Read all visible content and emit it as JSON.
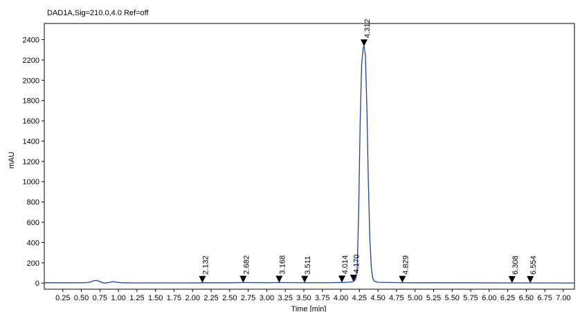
{
  "chart_data": {
    "type": "line",
    "title": "DAD1A,Sig=210.0,4.0  Ref=off",
    "xlabel": "Time [min]",
    "ylabel": "mAU",
    "xlim": [
      0,
      7.15
    ],
    "ylim": [
      -60,
      2560
    ],
    "x_ticks": [
      0.25,
      0.5,
      0.75,
      1.0,
      1.25,
      1.5,
      1.75,
      2.0,
      2.25,
      2.5,
      2.75,
      3.0,
      3.25,
      3.5,
      3.75,
      4.0,
      4.25,
      4.5,
      4.75,
      5.0,
      5.25,
      5.5,
      5.75,
      6.0,
      6.25,
      6.5,
      6.75,
      7.0
    ],
    "x_tick_labels": [
      "0.25",
      "0.50",
      "0.75",
      "1.00",
      "1.25",
      "1.50",
      "1.75",
      "2.00",
      "2.25",
      "2.50",
      "2.75",
      "3.00",
      "3.25",
      "3.50",
      "3.75",
      "4.00",
      "4.25",
      "4.50",
      "4.75",
      "5.00",
      "5.25",
      "5.50",
      "5.75",
      "6.00",
      "6.25",
      "6.50",
      "6.75",
      "7.00"
    ],
    "y_ticks": [
      0,
      200,
      400,
      600,
      800,
      1000,
      1200,
      1400,
      1600,
      1800,
      2000,
      2200,
      2400
    ],
    "y_tick_labels": [
      "0",
      "200",
      "400",
      "600",
      "800",
      "1000",
      "1200",
      "1400",
      "1600",
      "1800",
      "2000",
      "2200",
      "2400"
    ],
    "grid": false,
    "line_color": "#1f3f8f",
    "series": [
      {
        "x": [
          0.0,
          0.55,
          0.62,
          0.66,
          0.7,
          0.74,
          0.78,
          0.82,
          0.87,
          0.93,
          0.98,
          1.05,
          1.2,
          2.0,
          2.132,
          2.5,
          2.682,
          3.0,
          3.168,
          3.511,
          3.8,
          4.014,
          4.1,
          4.17,
          4.2,
          4.22,
          4.24,
          4.26,
          4.28,
          4.3,
          4.312,
          4.33,
          4.35,
          4.37,
          4.39,
          4.41,
          4.43,
          4.45,
          4.5,
          4.829,
          5.5,
          6.308,
          6.554,
          7.0,
          7.15
        ],
        "y": [
          3,
          4,
          10,
          22,
          28,
          18,
          5,
          0,
          6,
          15,
          8,
          3,
          2,
          2,
          3,
          3,
          5,
          4,
          5,
          4,
          4,
          6,
          8,
          15,
          40,
          150,
          700,
          1600,
          2150,
          2320,
          2335,
          2250,
          1750,
          1000,
          450,
          150,
          50,
          20,
          8,
          4,
          3,
          2,
          2,
          1,
          1
        ]
      }
    ],
    "peaks": [
      {
        "label": "2.132",
        "x": 2.132,
        "y": 3
      },
      {
        "label": "2.682",
        "x": 2.682,
        "y": 5
      },
      {
        "label": "3.168",
        "x": 3.168,
        "y": 5
      },
      {
        "label": "3.511",
        "x": 3.511,
        "y": 4
      },
      {
        "label": "4.014",
        "x": 4.014,
        "y": 6
      },
      {
        "label": "4.170",
        "x": 4.17,
        "y": 15
      },
      {
        "label": "4.312",
        "x": 4.312,
        "y": 2335
      },
      {
        "label": "4.829",
        "x": 4.829,
        "y": 4
      },
      {
        "label": "6.308",
        "x": 6.308,
        "y": 2
      },
      {
        "label": "6.554",
        "x": 6.554,
        "y": 2
      }
    ]
  }
}
